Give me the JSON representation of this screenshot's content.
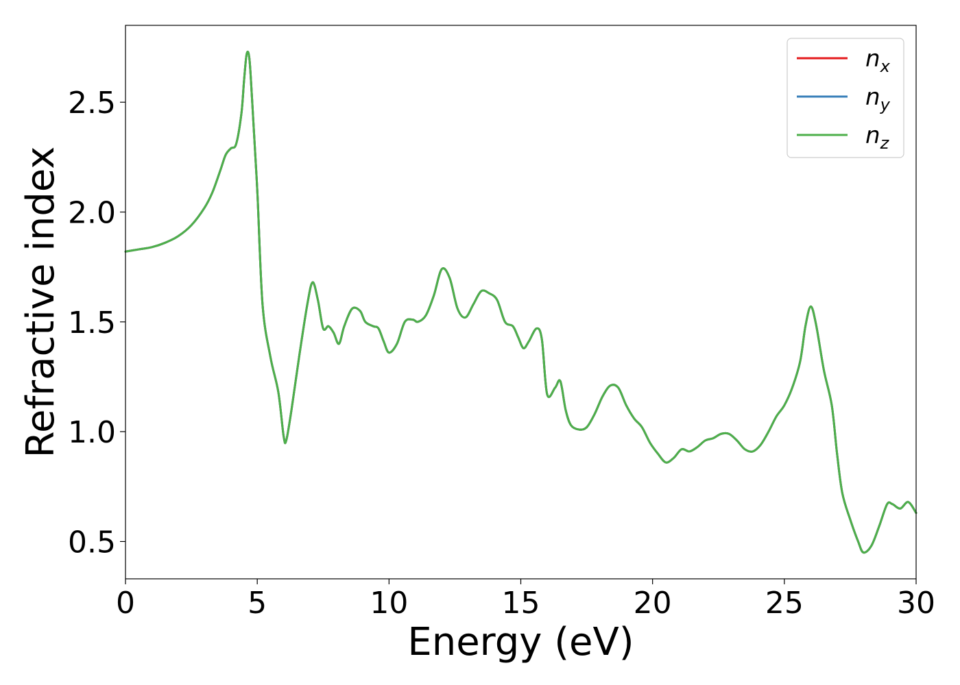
{
  "chart_data": {
    "type": "line",
    "xlabel": "Energy (eV)",
    "ylabel": "Refractive index",
    "xlim": [
      0,
      30
    ],
    "ylim": [
      0.33,
      2.85
    ],
    "xticks": [
      0,
      5,
      10,
      15,
      20,
      25,
      30
    ],
    "xtick_labels": [
      "0",
      "5",
      "10",
      "15",
      "20",
      "25",
      "30"
    ],
    "yticks": [
      0.5,
      1.0,
      1.5,
      2.0,
      2.5
    ],
    "ytick_labels": [
      "0.5",
      "1.0",
      "1.5",
      "2.0",
      "2.5"
    ],
    "grid": false,
    "legend_position": "top-right",
    "series": [
      {
        "name": "n_x",
        "label_main": "n",
        "label_sub": "x",
        "color": "#e41a1c",
        "x": [
          0,
          0.5,
          1,
          1.5,
          2,
          2.5,
          3,
          3.3,
          3.6,
          3.8,
          4,
          4.2,
          4.4,
          4.5,
          4.6,
          4.7,
          4.8,
          5,
          5.2,
          5.5,
          5.8,
          6,
          6.1,
          6.3,
          6.6,
          6.9,
          7.1,
          7.3,
          7.5,
          7.7,
          7.9,
          8.1,
          8.3,
          8.6,
          8.9,
          9.1,
          9.4,
          9.6,
          9.8,
          10,
          10.3,
          10.6,
          10.9,
          11.1,
          11.4,
          11.7,
          12,
          12.3,
          12.6,
          12.9,
          13.2,
          13.5,
          13.8,
          14.1,
          14.4,
          14.7,
          14.9,
          15.1,
          15.3,
          15.6,
          15.8,
          16,
          16.3,
          16.5,
          16.7,
          16.9,
          17.2,
          17.5,
          17.8,
          18.1,
          18.4,
          18.7,
          19,
          19.3,
          19.6,
          19.9,
          20.2,
          20.5,
          20.8,
          21.1,
          21.4,
          21.7,
          22,
          22.3,
          22.6,
          22.9,
          23.2,
          23.5,
          23.8,
          24.1,
          24.4,
          24.7,
          25,
          25.3,
          25.6,
          25.8,
          26,
          26.2,
          26.5,
          26.8,
          27,
          27.2,
          27.5,
          27.8,
          28,
          28.3,
          28.6,
          28.9,
          29.1,
          29.4,
          29.7,
          30
        ],
        "y": [
          1.82,
          1.83,
          1.84,
          1.86,
          1.89,
          1.94,
          2.02,
          2.09,
          2.19,
          2.26,
          2.29,
          2.31,
          2.45,
          2.6,
          2.72,
          2.7,
          2.52,
          2.1,
          1.58,
          1.34,
          1.18,
          0.98,
          0.96,
          1.1,
          1.35,
          1.58,
          1.68,
          1.6,
          1.47,
          1.48,
          1.45,
          1.4,
          1.48,
          1.56,
          1.55,
          1.5,
          1.48,
          1.47,
          1.41,
          1.36,
          1.4,
          1.5,
          1.51,
          1.5,
          1.53,
          1.62,
          1.74,
          1.7,
          1.56,
          1.52,
          1.58,
          1.64,
          1.63,
          1.6,
          1.5,
          1.48,
          1.43,
          1.38,
          1.41,
          1.47,
          1.42,
          1.17,
          1.2,
          1.23,
          1.1,
          1.03,
          1.01,
          1.02,
          1.08,
          1.16,
          1.21,
          1.2,
          1.12,
          1.06,
          1.02,
          0.95,
          0.9,
          0.86,
          0.88,
          0.92,
          0.91,
          0.93,
          0.96,
          0.97,
          0.99,
          0.99,
          0.96,
          0.92,
          0.91,
          0.94,
          1.0,
          1.07,
          1.12,
          1.2,
          1.32,
          1.48,
          1.57,
          1.49,
          1.28,
          1.12,
          0.9,
          0.72,
          0.6,
          0.5,
          0.45,
          0.48,
          0.57,
          0.67,
          0.67,
          0.65,
          0.68,
          0.63
        ]
      },
      {
        "name": "n_y",
        "label_main": "n",
        "label_sub": "y",
        "color": "#377eb8",
        "x": [
          0,
          0.5,
          1,
          1.5,
          2,
          2.5,
          3,
          3.3,
          3.6,
          3.8,
          4,
          4.2,
          4.4,
          4.5,
          4.6,
          4.7,
          4.8,
          5,
          5.2,
          5.5,
          5.8,
          6,
          6.1,
          6.3,
          6.6,
          6.9,
          7.1,
          7.3,
          7.5,
          7.7,
          7.9,
          8.1,
          8.3,
          8.6,
          8.9,
          9.1,
          9.4,
          9.6,
          9.8,
          10,
          10.3,
          10.6,
          10.9,
          11.1,
          11.4,
          11.7,
          12,
          12.3,
          12.6,
          12.9,
          13.2,
          13.5,
          13.8,
          14.1,
          14.4,
          14.7,
          14.9,
          15.1,
          15.3,
          15.6,
          15.8,
          16,
          16.3,
          16.5,
          16.7,
          16.9,
          17.2,
          17.5,
          17.8,
          18.1,
          18.4,
          18.7,
          19,
          19.3,
          19.6,
          19.9,
          20.2,
          20.5,
          20.8,
          21.1,
          21.4,
          21.7,
          22,
          22.3,
          22.6,
          22.9,
          23.2,
          23.5,
          23.8,
          24.1,
          24.4,
          24.7,
          25,
          25.3,
          25.6,
          25.8,
          26,
          26.2,
          26.5,
          26.8,
          27,
          27.2,
          27.5,
          27.8,
          28,
          28.3,
          28.6,
          28.9,
          29.1,
          29.4,
          29.7,
          30
        ],
        "y": [
          1.82,
          1.83,
          1.84,
          1.86,
          1.89,
          1.94,
          2.02,
          2.09,
          2.19,
          2.26,
          2.29,
          2.31,
          2.45,
          2.6,
          2.72,
          2.7,
          2.52,
          2.1,
          1.58,
          1.34,
          1.18,
          0.98,
          0.96,
          1.1,
          1.35,
          1.58,
          1.68,
          1.6,
          1.47,
          1.48,
          1.45,
          1.4,
          1.48,
          1.56,
          1.55,
          1.5,
          1.48,
          1.47,
          1.41,
          1.36,
          1.4,
          1.5,
          1.51,
          1.5,
          1.53,
          1.62,
          1.74,
          1.7,
          1.56,
          1.52,
          1.58,
          1.64,
          1.63,
          1.6,
          1.5,
          1.48,
          1.43,
          1.38,
          1.41,
          1.47,
          1.42,
          1.17,
          1.2,
          1.23,
          1.1,
          1.03,
          1.01,
          1.02,
          1.08,
          1.16,
          1.21,
          1.2,
          1.12,
          1.06,
          1.02,
          0.95,
          0.9,
          0.86,
          0.88,
          0.92,
          0.91,
          0.93,
          0.96,
          0.97,
          0.99,
          0.99,
          0.96,
          0.92,
          0.91,
          0.94,
          1.0,
          1.07,
          1.12,
          1.2,
          1.32,
          1.48,
          1.57,
          1.49,
          1.28,
          1.12,
          0.9,
          0.72,
          0.6,
          0.5,
          0.45,
          0.48,
          0.57,
          0.67,
          0.67,
          0.65,
          0.68,
          0.63
        ]
      },
      {
        "name": "n_z",
        "label_main": "n",
        "label_sub": "z",
        "color": "#4daf4a",
        "x": [
          0,
          0.5,
          1,
          1.5,
          2,
          2.5,
          3,
          3.3,
          3.6,
          3.8,
          4,
          4.2,
          4.4,
          4.5,
          4.6,
          4.7,
          4.8,
          5,
          5.2,
          5.5,
          5.8,
          6,
          6.1,
          6.3,
          6.6,
          6.9,
          7.1,
          7.3,
          7.5,
          7.7,
          7.9,
          8.1,
          8.3,
          8.6,
          8.9,
          9.1,
          9.4,
          9.6,
          9.8,
          10,
          10.3,
          10.6,
          10.9,
          11.1,
          11.4,
          11.7,
          12,
          12.3,
          12.6,
          12.9,
          13.2,
          13.5,
          13.8,
          14.1,
          14.4,
          14.7,
          14.9,
          15.1,
          15.3,
          15.6,
          15.8,
          16,
          16.3,
          16.5,
          16.7,
          16.9,
          17.2,
          17.5,
          17.8,
          18.1,
          18.4,
          18.7,
          19,
          19.3,
          19.6,
          19.9,
          20.2,
          20.5,
          20.8,
          21.1,
          21.4,
          21.7,
          22,
          22.3,
          22.6,
          22.9,
          23.2,
          23.5,
          23.8,
          24.1,
          24.4,
          24.7,
          25,
          25.3,
          25.6,
          25.8,
          26,
          26.2,
          26.5,
          26.8,
          27,
          27.2,
          27.5,
          27.8,
          28,
          28.3,
          28.6,
          28.9,
          29.1,
          29.4,
          29.7,
          30
        ],
        "y": [
          1.82,
          1.83,
          1.84,
          1.86,
          1.89,
          1.94,
          2.02,
          2.09,
          2.19,
          2.26,
          2.29,
          2.31,
          2.45,
          2.6,
          2.72,
          2.7,
          2.52,
          2.1,
          1.58,
          1.34,
          1.18,
          0.98,
          0.96,
          1.1,
          1.35,
          1.58,
          1.68,
          1.6,
          1.47,
          1.48,
          1.45,
          1.4,
          1.48,
          1.56,
          1.55,
          1.5,
          1.48,
          1.47,
          1.41,
          1.36,
          1.4,
          1.5,
          1.51,
          1.5,
          1.53,
          1.62,
          1.74,
          1.7,
          1.56,
          1.52,
          1.58,
          1.64,
          1.63,
          1.6,
          1.5,
          1.48,
          1.43,
          1.38,
          1.41,
          1.47,
          1.42,
          1.17,
          1.2,
          1.23,
          1.1,
          1.03,
          1.01,
          1.02,
          1.08,
          1.16,
          1.21,
          1.2,
          1.12,
          1.06,
          1.02,
          0.95,
          0.9,
          0.86,
          0.88,
          0.92,
          0.91,
          0.93,
          0.96,
          0.97,
          0.99,
          0.99,
          0.96,
          0.92,
          0.91,
          0.94,
          1.0,
          1.07,
          1.12,
          1.2,
          1.32,
          1.48,
          1.57,
          1.49,
          1.28,
          1.12,
          0.9,
          0.72,
          0.6,
          0.5,
          0.45,
          0.48,
          0.57,
          0.67,
          0.67,
          0.65,
          0.68,
          0.63
        ]
      }
    ]
  }
}
